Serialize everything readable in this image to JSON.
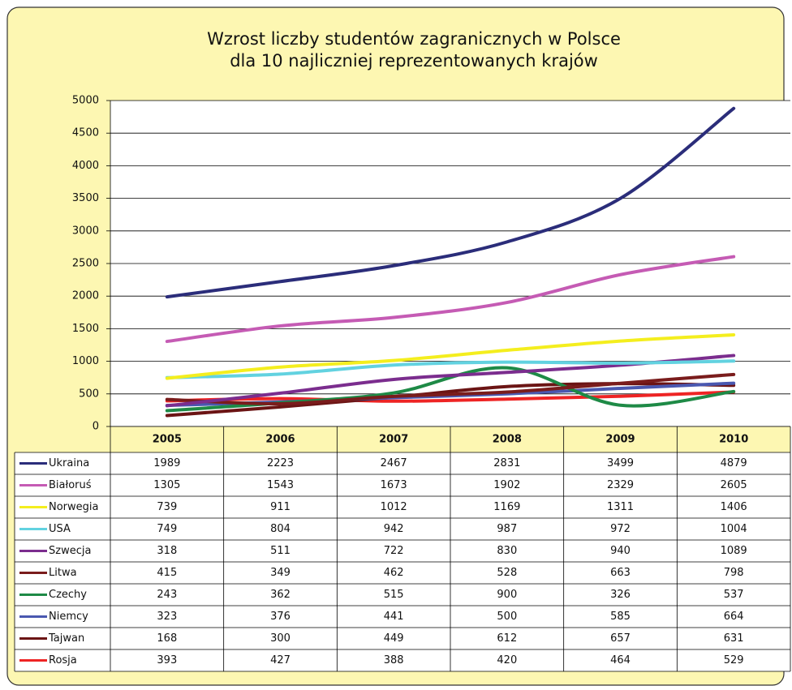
{
  "chart_data": {
    "type": "line",
    "title": [
      "Wzrost liczby studentów zagranicznych w Polsce",
      "dla 10 najliczniej reprezentowanych krajów"
    ],
    "categories": [
      "2005",
      "2006",
      "2007",
      "2008",
      "2009",
      "2010"
    ],
    "ylim": [
      0,
      5000
    ],
    "yticks": [
      0,
      500,
      1000,
      1500,
      2000,
      2500,
      3000,
      3500,
      4000,
      4500,
      5000
    ],
    "grid": true,
    "series": [
      {
        "name": "Ukraina",
        "color": "#2b2d7a",
        "values": [
          1989,
          2223,
          2467,
          2831,
          3499,
          4879
        ]
      },
      {
        "name": "Białoruś",
        "color": "#c55bb4",
        "values": [
          1305,
          1543,
          1673,
          1902,
          2329,
          2605
        ]
      },
      {
        "name": "Norwegia",
        "color": "#f4ee1e",
        "values": [
          739,
          911,
          1012,
          1169,
          1311,
          1406
        ]
      },
      {
        "name": "USA",
        "color": "#62d2e0",
        "values": [
          749,
          804,
          942,
          987,
          972,
          1004
        ]
      },
      {
        "name": "Szwecja",
        "color": "#7b2d8e",
        "values": [
          318,
          511,
          722,
          830,
          940,
          1089
        ]
      },
      {
        "name": "Litwa",
        "color": "#7a1c1c",
        "values": [
          415,
          349,
          462,
          528,
          663,
          798
        ]
      },
      {
        "name": "Czechy",
        "color": "#1e8a46",
        "values": [
          243,
          362,
          515,
          900,
          326,
          537
        ]
      },
      {
        "name": "Niemcy",
        "color": "#4a58b0",
        "values": [
          323,
          376,
          441,
          500,
          585,
          664
        ]
      },
      {
        "name": "Tajwan",
        "color": "#6b1414",
        "values": [
          168,
          300,
          449,
          612,
          657,
          631
        ]
      },
      {
        "name": "Rosja",
        "color": "#ee2424",
        "values": [
          393,
          427,
          388,
          420,
          464,
          529
        ]
      }
    ]
  }
}
